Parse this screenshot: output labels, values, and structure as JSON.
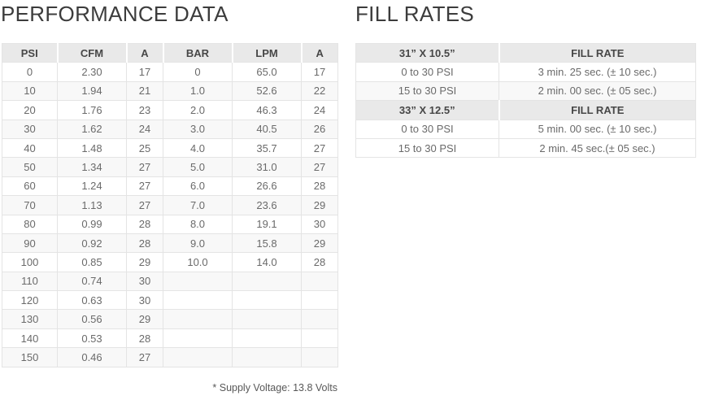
{
  "performance": {
    "title": "PERFORMANCE DATA",
    "columns": [
      "PSI",
      "CFM",
      "A",
      "BAR",
      "LPM",
      "A"
    ],
    "rows": [
      [
        "0",
        "2.30",
        "17",
        "0",
        "65.0",
        "17"
      ],
      [
        "10",
        "1.94",
        "21",
        "1.0",
        "52.6",
        "22"
      ],
      [
        "20",
        "1.76",
        "23",
        "2.0",
        "46.3",
        "24"
      ],
      [
        "30",
        "1.62",
        "24",
        "3.0",
        "40.5",
        "26"
      ],
      [
        "40",
        "1.48",
        "25",
        "4.0",
        "35.7",
        "27"
      ],
      [
        "50",
        "1.34",
        "27",
        "5.0",
        "31.0",
        "27"
      ],
      [
        "60",
        "1.24",
        "27",
        "6.0",
        "26.6",
        "28"
      ],
      [
        "70",
        "1.13",
        "27",
        "7.0",
        "23.6",
        "29"
      ],
      [
        "80",
        "0.99",
        "28",
        "8.0",
        "19.1",
        "30"
      ],
      [
        "90",
        "0.92",
        "28",
        "9.0",
        "15.8",
        "29"
      ],
      [
        "100",
        "0.85",
        "29",
        "10.0",
        "14.0",
        "28"
      ],
      [
        "110",
        "0.74",
        "30",
        "",
        "",
        ""
      ],
      [
        "120",
        "0.63",
        "30",
        "",
        "",
        ""
      ],
      [
        "130",
        "0.56",
        "29",
        "",
        "",
        ""
      ],
      [
        "140",
        "0.53",
        "28",
        "",
        "",
        ""
      ],
      [
        "150",
        "0.46",
        "27",
        "",
        "",
        ""
      ]
    ],
    "footnote": "* Supply Voltage: 13.8 Volts"
  },
  "fill_rates": {
    "title": "FILL RATES",
    "sections": [
      {
        "size_label": "31” X 10.5”",
        "rate_label": "FILL RATE",
        "rows": [
          [
            "0 to 30 PSI",
            "3 min. 25 sec. (± 10 sec.)"
          ],
          [
            "15 to 30 PSI",
            "2 min. 00 sec. (± 05 sec.)"
          ]
        ]
      },
      {
        "size_label": "33” X 12.5”",
        "rate_label": "FILL RATE",
        "rows": [
          [
            "0 to 30 PSI",
            "5 min. 00 sec. (± 10 sec.)"
          ],
          [
            "15 to 30 PSI",
            "2 min. 45 sec.(± 05 sec.)"
          ]
        ]
      }
    ]
  },
  "colors": {
    "header_bg": "#e9e9e9",
    "stripe_bg": "#f8f8f8",
    "border": "#e4e4e4",
    "cell_text": "#6a6a6a",
    "header_text": "#474747",
    "title_text": "#3c3c3c"
  }
}
